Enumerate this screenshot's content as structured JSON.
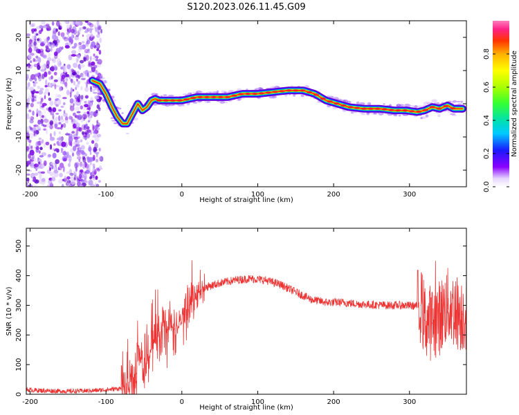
{
  "figure": {
    "title": "S120.2023.026.11.45.G09"
  },
  "chart_data": [
    {
      "type": "heatmap",
      "xlabel": "Height of straight line (km)",
      "ylabel": "Frequency (Hz)",
      "xlim": [
        -205,
        375
      ],
      "ylim": [
        -25,
        25
      ],
      "xticks": [
        -200,
        -100,
        0,
        100,
        200,
        300
      ],
      "yticks": [
        -20,
        -10,
        0,
        10,
        20
      ],
      "ridge": {
        "x": [
          -118,
          -108,
          -100,
          -92,
          -85,
          -78,
          -72,
          -65,
          -58,
          -52,
          -46,
          -40,
          -35,
          -30,
          -20,
          0,
          20,
          40,
          60,
          80,
          100,
          120,
          140,
          160,
          175,
          190,
          205,
          220,
          240,
          260,
          280,
          295,
          310,
          320,
          330,
          340,
          350,
          358,
          365,
          370
        ],
        "freq": [
          7,
          6,
          3,
          -1,
          -4,
          -6,
          -6,
          -3,
          0,
          -2,
          -1,
          1,
          1.5,
          1,
          1,
          1,
          2,
          2,
          2,
          3,
          3,
          3.5,
          4,
          4,
          3,
          1,
          0,
          -1,
          -1.5,
          -1.5,
          -2,
          -2,
          -2.5,
          -2,
          -1,
          -1.5,
          -0.5,
          -1.5,
          -1.5,
          -1.5
        ]
      },
      "noise_region": {
        "x": [
          -205,
          -118
        ],
        "freq": [
          -25,
          25
        ]
      },
      "colorbar": {
        "label": "Normalized spectral amplitude",
        "range": [
          0.0,
          1.0
        ],
        "ticks": [
          "0.0",
          "0.2",
          "0.4",
          "0.6",
          "0.8"
        ],
        "tick_values": [
          0.0,
          0.2,
          0.4,
          0.6,
          0.8
        ],
        "colormap": "gist_ncar_like"
      }
    },
    {
      "type": "line",
      "xlabel": "Height of straight line (km)",
      "ylabel": "SNR (10 * v/v)",
      "xlim": [
        -205,
        375
      ],
      "ylim": [
        0,
        560
      ],
      "xticks": [
        -200,
        -100,
        0,
        100,
        200,
        300
      ],
      "yticks": [
        0,
        100,
        200,
        300,
        400,
        500
      ],
      "series": [
        {
          "color": "#ee3333",
          "x": [
            -205,
            -180,
            -150,
            -120,
            -100,
            -80,
            -70,
            -60,
            -55,
            -50,
            -40,
            -30,
            -20,
            -10,
            0,
            10,
            20,
            30,
            50,
            70,
            90,
            110,
            130,
            150,
            170,
            190,
            210,
            230,
            250,
            270,
            290,
            310,
            315,
            320,
            330,
            340,
            350,
            360,
            370,
            375
          ],
          "y": [
            15,
            12,
            10,
            12,
            15,
            20,
            40,
            70,
            120,
            60,
            150,
            200,
            230,
            220,
            240,
            300,
            340,
            360,
            375,
            385,
            390,
            385,
            370,
            345,
            320,
            310,
            310,
            305,
            302,
            300,
            300,
            298,
            300,
            250,
            240,
            260,
            300,
            280,
            270,
            280
          ]
        }
      ]
    }
  ]
}
